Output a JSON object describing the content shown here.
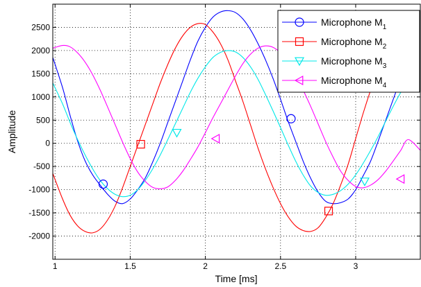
{
  "chart_data": {
    "type": "line",
    "title": "",
    "xlabel": "Time [ms]",
    "ylabel": "Amplitude",
    "xlim": [
      0.985,
      3.43
    ],
    "ylim": [
      -2500,
      3000
    ],
    "xticks": [
      1,
      1.5,
      2,
      2.5,
      3
    ],
    "xtick_labels": [
      "1",
      "1.5",
      "2",
      "2.5",
      "3"
    ],
    "yticks": [
      -2000,
      -1500,
      -1000,
      -500,
      0,
      500,
      1000,
      1500,
      2000,
      2500
    ],
    "ytick_labels": [
      "-2000",
      "-1500",
      "-1000",
      "-500",
      "0",
      "500",
      "1000",
      "1500",
      "2000",
      "2500"
    ],
    "grid": true,
    "legend_position": "top-right",
    "series": [
      {
        "name": "Microphone M",
        "subscript": "1",
        "color": "#0000ff",
        "marker": "circle",
        "x": [
          0.985,
          1.05,
          1.1,
          1.15,
          1.2,
          1.25,
          1.3,
          1.35,
          1.4,
          1.45,
          1.5,
          1.55,
          1.6,
          1.65,
          1.7,
          1.75,
          1.8,
          1.85,
          1.9,
          1.95,
          2.0,
          2.05,
          2.1,
          2.15,
          2.2,
          2.25,
          2.3,
          2.35,
          2.4,
          2.45,
          2.5,
          2.55,
          2.6,
          2.65,
          2.7,
          2.75,
          2.8,
          2.85,
          2.9,
          2.95,
          3.0,
          3.05,
          3.1,
          3.15,
          3.2,
          3.25,
          3.3,
          3.35,
          3.43
        ],
        "y": [
          1850,
          1200,
          600,
          50,
          -380,
          -680,
          -900,
          -1100,
          -1250,
          -1300,
          -1200,
          -1000,
          -750,
          -400,
          0,
          450,
          900,
          1350,
          1800,
          2200,
          2500,
          2720,
          2830,
          2860,
          2820,
          2680,
          2450,
          2150,
          1800,
          1400,
          950,
          480,
          50,
          -380,
          -750,
          -1050,
          -1250,
          -1300,
          -1280,
          -1200,
          -1000,
          -700,
          -380,
          50,
          500,
          950,
          1400,
          1850,
          2350
        ],
        "markers": [
          [
            1.32,
            -880
          ],
          [
            2.57,
            530
          ]
        ]
      },
      {
        "name": "Microphone M",
        "subscript": "2",
        "color": "#ff0000",
        "marker": "square",
        "x": [
          0.985,
          1.05,
          1.1,
          1.15,
          1.2,
          1.25,
          1.3,
          1.35,
          1.4,
          1.45,
          1.5,
          1.55,
          1.6,
          1.65,
          1.7,
          1.75,
          1.8,
          1.85,
          1.9,
          1.95,
          2.0,
          2.05,
          2.1,
          2.15,
          2.2,
          2.25,
          2.3,
          2.35,
          2.4,
          2.45,
          2.5,
          2.55,
          2.6,
          2.65,
          2.7,
          2.75,
          2.8,
          2.85,
          2.9,
          2.95,
          3.0,
          3.05,
          3.1,
          3.15,
          3.2,
          3.25,
          3.3,
          3.35,
          3.43
        ],
        "y": [
          -650,
          -1200,
          -1550,
          -1780,
          -1900,
          -1930,
          -1850,
          -1650,
          -1350,
          -950,
          -500,
          -50,
          400,
          850,
          1300,
          1700,
          2050,
          2320,
          2500,
          2580,
          2560,
          2400,
          2150,
          1800,
          1350,
          900,
          400,
          -100,
          -550,
          -950,
          -1300,
          -1580,
          -1780,
          -1880,
          -1900,
          -1820,
          -1600,
          -1300,
          -900,
          -450,
          100,
          650,
          1150,
          1600,
          2000,
          2300,
          2480,
          2560,
          2550
        ],
        "markers": [
          [
            1.57,
            -20
          ],
          [
            2.82,
            -1460
          ]
        ]
      },
      {
        "name": "Microphone M",
        "subscript": "3",
        "color": "#00e8e8",
        "marker": "triangle-down",
        "x": [
          0.985,
          1.05,
          1.1,
          1.15,
          1.2,
          1.25,
          1.3,
          1.35,
          1.4,
          1.45,
          1.5,
          1.55,
          1.6,
          1.65,
          1.7,
          1.75,
          1.8,
          1.85,
          1.9,
          1.95,
          2.0,
          2.05,
          2.1,
          2.15,
          2.2,
          2.25,
          2.3,
          2.35,
          2.4,
          2.45,
          2.5,
          2.55,
          2.6,
          2.65,
          2.7,
          2.75,
          2.8,
          2.85,
          2.9,
          2.95,
          3.0,
          3.05,
          3.1,
          3.15,
          3.2,
          3.25,
          3.3,
          3.35,
          3.43
        ],
        "y": [
          1300,
          850,
          450,
          80,
          -250,
          -550,
          -800,
          -980,
          -1100,
          -1150,
          -1120,
          -1000,
          -800,
          -550,
          -250,
          80,
          420,
          760,
          1100,
          1400,
          1650,
          1850,
          1960,
          2000,
          1970,
          1850,
          1650,
          1380,
          1050,
          700,
          340,
          -30,
          -380,
          -680,
          -920,
          -1060,
          -1120,
          -1100,
          -1020,
          -880,
          -680,
          -430,
          -150,
          150,
          480,
          800,
          1100,
          1380,
          1750
        ],
        "markers": [
          [
            1.81,
            230
          ],
          [
            3.06,
            -820
          ]
        ]
      },
      {
        "name": "Microphone M",
        "subscript": "4",
        "color": "#ff00ff",
        "marker": "triangle-left",
        "x": [
          0.985,
          1.05,
          1.1,
          1.15,
          1.2,
          1.25,
          1.3,
          1.35,
          1.4,
          1.45,
          1.5,
          1.55,
          1.6,
          1.65,
          1.7,
          1.75,
          1.8,
          1.85,
          1.9,
          1.95,
          2.0,
          2.05,
          2.1,
          2.15,
          2.2,
          2.25,
          2.3,
          2.35,
          2.4,
          2.45,
          2.5,
          2.55,
          2.6,
          2.65,
          2.7,
          2.75,
          2.8,
          2.85,
          2.9,
          2.95,
          3.0,
          3.05,
          3.1,
          3.15,
          3.2,
          3.25,
          3.3,
          3.35,
          3.43
        ],
        "y": [
          2050,
          2110,
          2080,
          1950,
          1750,
          1480,
          1150,
          780,
          400,
          20,
          -330,
          -620,
          -820,
          -950,
          -980,
          -940,
          -800,
          -600,
          -350,
          -80,
          230,
          550,
          850,
          1150,
          1450,
          1720,
          1920,
          2050,
          2100,
          2070,
          1950,
          1750,
          1480,
          1150,
          800,
          420,
          40,
          -300,
          -600,
          -800,
          -930,
          -960,
          -900,
          -780,
          -600,
          -380,
          -150,
          80,
          -150
        ],
        "markers": [
          [
            2.07,
            100
          ],
          [
            3.3,
            -770
          ]
        ]
      }
    ]
  }
}
